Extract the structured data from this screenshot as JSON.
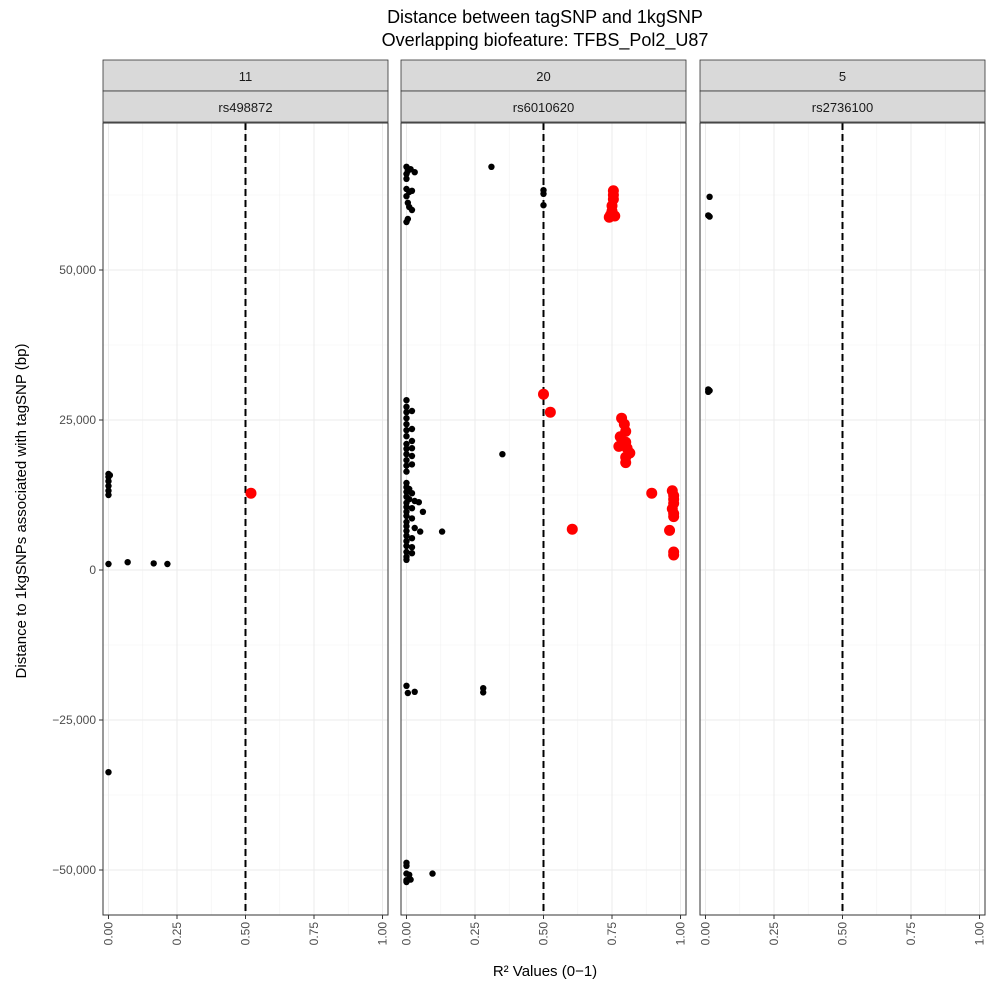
{
  "chart_data": {
    "type": "scatter",
    "title": [
      "Distance between tagSNP and 1kgSNP",
      "Overlapping biofeature: TFBS_Pol2_U87"
    ],
    "xlabel": "R² Values (0−1)",
    "ylabel": "Distance to 1kgSNPs associated with tagSNP (bp)",
    "xlim": [
      -0.02,
      1.02
    ],
    "ylim": [
      -57500,
      74500
    ],
    "x_ticks": [
      0,
      0.25,
      0.5,
      0.75,
      1
    ],
    "x_tick_labels": [
      "0.00",
      "0.25",
      "0.50",
      "0.75",
      "1.00"
    ],
    "y_ticks": [
      -50000,
      -25000,
      0,
      25000,
      50000
    ],
    "y_tick_labels": [
      "−50,000",
      "−25,000",
      "0",
      "25,000",
      "50,000"
    ],
    "threshold_x": 0.5,
    "grid": true,
    "colors": {
      "below_threshold": "#000000",
      "above_threshold": "#ff0000",
      "strip_bg": "#d9d9d9",
      "grid": "#ebebeb"
    },
    "panels": [
      {
        "strip_top": "11",
        "strip_bottom": "rs498872",
        "points": [
          {
            "x": 0.0,
            "y": 16000
          },
          {
            "x": 0.0,
            "y": 15500
          },
          {
            "x": 0.0,
            "y": 14800
          },
          {
            "x": 0.0,
            "y": 14000
          },
          {
            "x": 0.0,
            "y": 13200
          },
          {
            "x": 0.0,
            "y": 12500
          },
          {
            "x": 0.005,
            "y": 15800
          },
          {
            "x": 0.0,
            "y": 1000
          },
          {
            "x": 0.07,
            "y": 1300
          },
          {
            "x": 0.165,
            "y": 1100
          },
          {
            "x": 0.215,
            "y": 1000
          },
          {
            "x": 0.0,
            "y": -33700
          }
        ],
        "red_points": [
          {
            "x": 0.52,
            "y": 12800
          }
        ]
      },
      {
        "strip_top": "20",
        "strip_bottom": "rs6010620",
        "points": [
          {
            "x": 0.0,
            "y": 67200
          },
          {
            "x": 0.005,
            "y": 66500
          },
          {
            "x": 0.0,
            "y": 66000
          },
          {
            "x": 0.015,
            "y": 66800
          },
          {
            "x": 0.03,
            "y": 66300
          },
          {
            "x": 0.0,
            "y": 65200
          },
          {
            "x": 0.0,
            "y": 63500
          },
          {
            "x": 0.01,
            "y": 63000
          },
          {
            "x": 0.02,
            "y": 63200
          },
          {
            "x": 0.0,
            "y": 62300
          },
          {
            "x": 0.005,
            "y": 61200
          },
          {
            "x": 0.01,
            "y": 60500
          },
          {
            "x": 0.02,
            "y": 60000
          },
          {
            "x": 0.005,
            "y": 58500
          },
          {
            "x": 0.0,
            "y": 58000
          },
          {
            "x": 0.31,
            "y": 67200
          },
          {
            "x": 0.5,
            "y": 63300
          },
          {
            "x": 0.5,
            "y": 62700
          },
          {
            "x": 0.5,
            "y": 60800
          },
          {
            "x": 0.0,
            "y": 28300
          },
          {
            "x": 0.0,
            "y": 27200
          },
          {
            "x": 0.0,
            "y": 26300
          },
          {
            "x": 0.02,
            "y": 26500
          },
          {
            "x": 0.0,
            "y": 25300
          },
          {
            "x": 0.0,
            "y": 24300
          },
          {
            "x": 0.0,
            "y": 23300
          },
          {
            "x": 0.02,
            "y": 23500
          },
          {
            "x": 0.0,
            "y": 22300
          },
          {
            "x": 0.02,
            "y": 21500
          },
          {
            "x": 0.0,
            "y": 21000
          },
          {
            "x": 0.0,
            "y": 20200
          },
          {
            "x": 0.02,
            "y": 20300
          },
          {
            "x": 0.0,
            "y": 19300
          },
          {
            "x": 0.02,
            "y": 19000
          },
          {
            "x": 0.0,
            "y": 18300
          },
          {
            "x": 0.0,
            "y": 17400
          },
          {
            "x": 0.02,
            "y": 17600
          },
          {
            "x": 0.0,
            "y": 16400
          },
          {
            "x": 0.35,
            "y": 19300
          },
          {
            "x": 0.0,
            "y": 14500
          },
          {
            "x": 0.0,
            "y": 13800
          },
          {
            "x": 0.01,
            "y": 13500
          },
          {
            "x": 0.0,
            "y": 13000
          },
          {
            "x": 0.02,
            "y": 12800
          },
          {
            "x": 0.0,
            "y": 12200
          },
          {
            "x": 0.01,
            "y": 11800
          },
          {
            "x": 0.03,
            "y": 11500
          },
          {
            "x": 0.0,
            "y": 11200
          },
          {
            "x": 0.045,
            "y": 11300
          },
          {
            "x": 0.0,
            "y": 10500
          },
          {
            "x": 0.02,
            "y": 10300
          },
          {
            "x": 0.0,
            "y": 9700
          },
          {
            "x": 0.06,
            "y": 9700
          },
          {
            "x": 0.0,
            "y": 9000
          },
          {
            "x": 0.02,
            "y": 8600
          },
          {
            "x": 0.0,
            "y": 8000
          },
          {
            "x": 0.0,
            "y": 7300
          },
          {
            "x": 0.03,
            "y": 7000
          },
          {
            "x": 0.0,
            "y": 6500
          },
          {
            "x": 0.05,
            "y": 6400
          },
          {
            "x": 0.0,
            "y": 5700
          },
          {
            "x": 0.02,
            "y": 5300
          },
          {
            "x": 0.0,
            "y": 4800
          },
          {
            "x": 0.0,
            "y": 4000
          },
          {
            "x": 0.02,
            "y": 3800
          },
          {
            "x": 0.0,
            "y": 3000
          },
          {
            "x": 0.02,
            "y": 2800
          },
          {
            "x": 0.0,
            "y": 2200
          },
          {
            "x": 0.0,
            "y": 1700
          },
          {
            "x": 0.13,
            "y": 6400
          },
          {
            "x": 0.0,
            "y": -19300
          },
          {
            "x": 0.005,
            "y": -20500
          },
          {
            "x": 0.03,
            "y": -20300
          },
          {
            "x": 0.28,
            "y": -19700
          },
          {
            "x": 0.28,
            "y": -20400
          },
          {
            "x": 0.0,
            "y": -48800
          },
          {
            "x": 0.0,
            "y": -49300
          },
          {
            "x": 0.0,
            "y": -50600
          },
          {
            "x": 0.01,
            "y": -50800
          },
          {
            "x": 0.0,
            "y": -51700
          },
          {
            "x": 0.015,
            "y": -51600
          },
          {
            "x": 0.0,
            "y": -52000
          },
          {
            "x": 0.095,
            "y": -50600
          }
        ],
        "red_points": [
          {
            "x": 0.755,
            "y": 63200
          },
          {
            "x": 0.755,
            "y": 62500
          },
          {
            "x": 0.755,
            "y": 61800
          },
          {
            "x": 0.75,
            "y": 60700
          },
          {
            "x": 0.75,
            "y": 59800
          },
          {
            "x": 0.745,
            "y": 59200
          },
          {
            "x": 0.76,
            "y": 59000
          },
          {
            "x": 0.74,
            "y": 58800
          },
          {
            "x": 0.5,
            "y": 29300
          },
          {
            "x": 0.525,
            "y": 26300
          },
          {
            "x": 0.785,
            "y": 25300
          },
          {
            "x": 0.795,
            "y": 24300
          },
          {
            "x": 0.8,
            "y": 23100
          },
          {
            "x": 0.78,
            "y": 22200
          },
          {
            "x": 0.8,
            "y": 21300
          },
          {
            "x": 0.775,
            "y": 20600
          },
          {
            "x": 0.805,
            "y": 20300
          },
          {
            "x": 0.815,
            "y": 19500
          },
          {
            "x": 0.8,
            "y": 18800
          },
          {
            "x": 0.8,
            "y": 17900
          },
          {
            "x": 0.895,
            "y": 12800
          },
          {
            "x": 0.97,
            "y": 13200
          },
          {
            "x": 0.975,
            "y": 12400
          },
          {
            "x": 0.975,
            "y": 11800
          },
          {
            "x": 0.975,
            "y": 11100
          },
          {
            "x": 0.97,
            "y": 10200
          },
          {
            "x": 0.975,
            "y": 9400
          },
          {
            "x": 0.975,
            "y": 8900
          },
          {
            "x": 0.96,
            "y": 6600
          },
          {
            "x": 0.605,
            "y": 6800
          },
          {
            "x": 0.975,
            "y": 3000
          },
          {
            "x": 0.975,
            "y": 2500
          }
        ]
      },
      {
        "strip_top": "5",
        "strip_bottom": "rs2736100",
        "points": [
          {
            "x": 0.015,
            "y": 62200
          },
          {
            "x": 0.01,
            "y": 59100
          },
          {
            "x": 0.015,
            "y": 58900
          },
          {
            "x": 0.01,
            "y": 30100
          },
          {
            "x": 0.015,
            "y": 29900
          },
          {
            "x": 0.01,
            "y": 29700
          }
        ],
        "red_points": []
      }
    ]
  }
}
